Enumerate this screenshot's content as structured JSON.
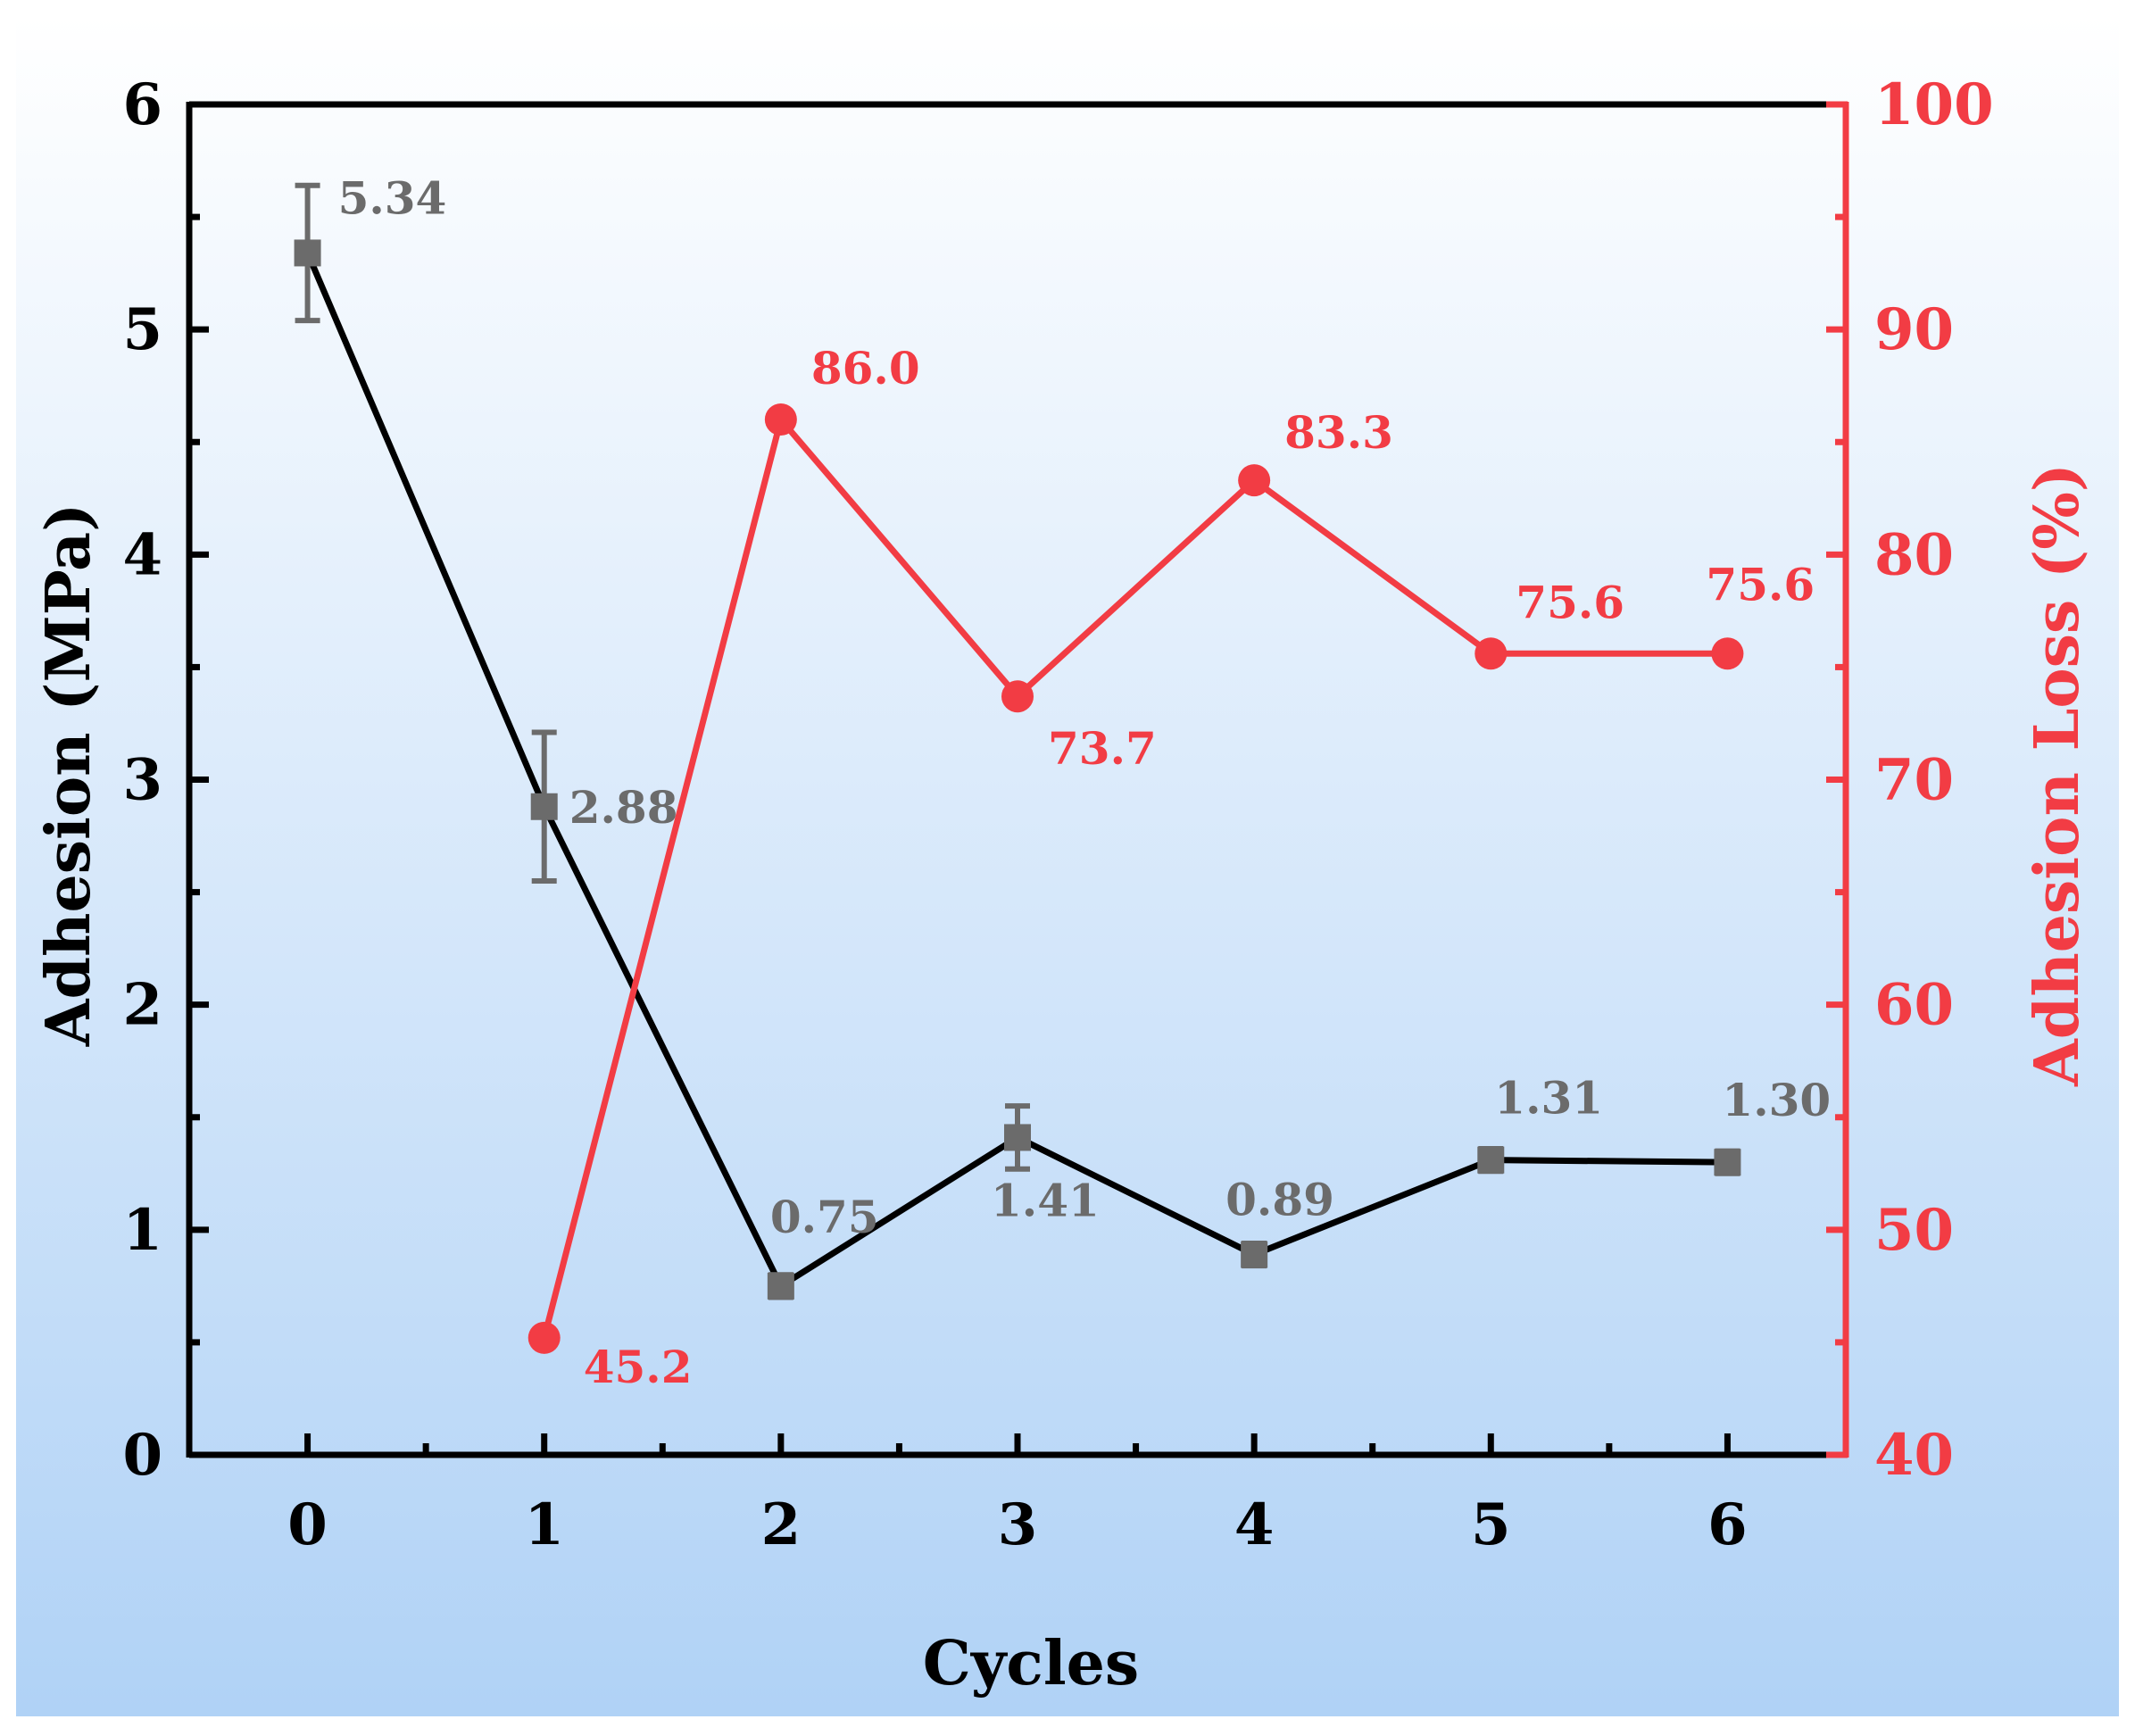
{
  "chart_data": {
    "type": "line",
    "xlabel": "Cycles",
    "ylabel_left": "Adhesion (MPa)",
    "ylabel_right": "Adhesion Loss (%)",
    "x_ticks": [
      "0",
      "1",
      "2",
      "3",
      "4",
      "5",
      "6"
    ],
    "left_ticks": [
      "0",
      "1",
      "2",
      "3",
      "4",
      "5",
      "6"
    ],
    "right_ticks": [
      "40",
      "50",
      "60",
      "70",
      "80",
      "90",
      "100"
    ],
    "xlim": [
      -0.5,
      6.5
    ],
    "ylim_left": [
      0,
      6
    ],
    "ylim_right": [
      40,
      100
    ],
    "colors": {
      "adhesion_line": "#000000",
      "adhesion_marker": "#6b6b6b",
      "loss": "#f23c44",
      "bg_top": "#ffffff",
      "bg_bottom": "#b0d2f6"
    },
    "series": [
      {
        "name": "Adhesion",
        "axis": "left",
        "marker": "square",
        "x": [
          0,
          1,
          2,
          3,
          4,
          5,
          6
        ],
        "values": [
          5.34,
          2.88,
          0.75,
          1.41,
          0.89,
          1.31,
          1.3
        ],
        "errors": [
          0.3,
          0.33,
          0.05,
          0.14,
          0.05,
          0.05,
          0.05
        ],
        "labels": [
          "5.34",
          "2.88",
          "0.75",
          "1.41",
          "0.89",
          "1.31",
          "1.30"
        ]
      },
      {
        "name": "Adhesion Loss",
        "axis": "right",
        "marker": "circle",
        "x": [
          1,
          2,
          3,
          4,
          5,
          6
        ],
        "values": [
          45.2,
          86.0,
          73.7,
          83.3,
          75.6,
          75.6
        ],
        "labels": [
          "45.2",
          "86.0",
          "73.7",
          "83.3",
          "75.6",
          "75.6"
        ]
      }
    ]
  }
}
